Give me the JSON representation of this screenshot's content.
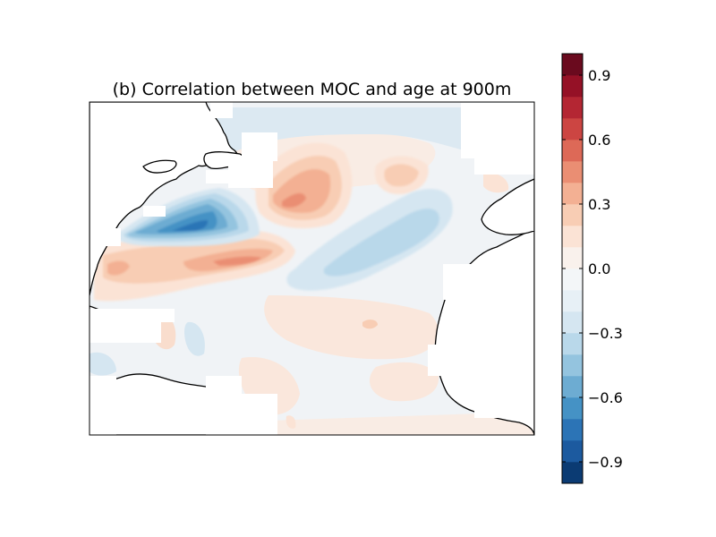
{
  "figure": {
    "title": "(b) Correlation between MOC and age at 900m"
  },
  "colorbar": {
    "vmin": -1.0,
    "vmax": 1.0,
    "levels": 20,
    "colors": [
      "#0b3b73",
      "#1c5a9f",
      "#2c74b6",
      "#4592c5",
      "#6dacd2",
      "#94c4df",
      "#b9d8ea",
      "#d5e6f1",
      "#e7f0f6",
      "#f3f6f8",
      "#f9f1ec",
      "#fbe3d5",
      "#f8cdb4",
      "#f3b093",
      "#ea8e73",
      "#dd6957",
      "#cc4542",
      "#b42633",
      "#951126",
      "#6a0a1e"
    ],
    "ticks": [
      {
        "value": 0.9,
        "label": "0.9"
      },
      {
        "value": 0.6,
        "label": "0.6"
      },
      {
        "value": 0.3,
        "label": "0.3"
      },
      {
        "value": 0.0,
        "label": "0.0"
      },
      {
        "value": -0.3,
        "label": "−0.3"
      },
      {
        "value": -0.6,
        "label": "−0.6"
      },
      {
        "value": -0.9,
        "label": "−0.9"
      }
    ]
  },
  "map": {
    "region": "North Atlantic",
    "land_color": "#ffffff",
    "coastline_color": "#000000",
    "background_value": 0.0
  }
}
